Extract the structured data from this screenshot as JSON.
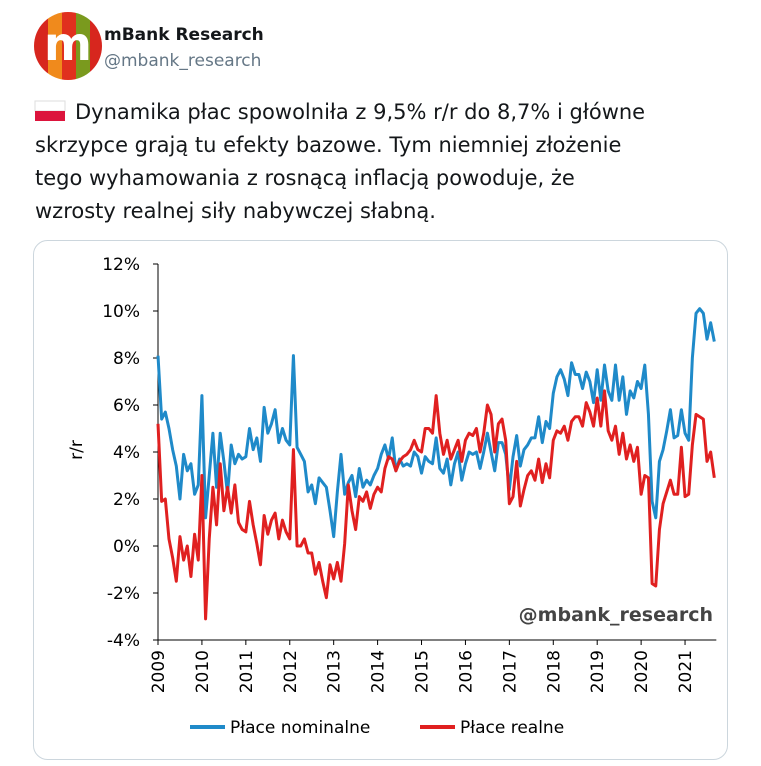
{
  "header": {
    "name": "mBank Research",
    "handle": "@mbank_research"
  },
  "tweet": {
    "text_lines": [
      "Dynamika płac spowolniła z 9,5% r/r do 8,7% i główne",
      "skrzypce grają tu efekty bazowe. Tym niemniej złożenie",
      "tego wyhamowania z rosnącą inflacją powoduje, że",
      "wzrosty realnej siły nabywczej słabną."
    ]
  },
  "chart_data": {
    "type": "line",
    "ylabel": "r/r",
    "annotation": "@mbank_research",
    "categories": [
      "2009",
      null,
      null,
      null,
      null,
      null,
      null,
      null,
      null,
      null,
      null,
      null,
      "2010",
      null,
      null,
      null,
      null,
      null,
      null,
      null,
      null,
      null,
      null,
      null,
      "2011",
      null,
      null,
      null,
      null,
      null,
      null,
      null,
      null,
      null,
      null,
      null,
      "2012",
      null,
      null,
      null,
      null,
      null,
      null,
      null,
      null,
      null,
      null,
      null,
      "2013",
      null,
      null,
      null,
      null,
      null,
      null,
      null,
      null,
      null,
      null,
      null,
      "2014",
      null,
      null,
      null,
      null,
      null,
      null,
      null,
      null,
      null,
      null,
      null,
      "2015",
      null,
      null,
      null,
      null,
      null,
      null,
      null,
      null,
      null,
      null,
      null,
      "2016",
      null,
      null,
      null,
      null,
      null,
      null,
      null,
      null,
      null,
      null,
      null,
      "2017",
      null,
      null,
      null,
      null,
      null,
      null,
      null,
      null,
      null,
      null,
      null,
      "2018",
      null,
      null,
      null,
      null,
      null,
      null,
      null,
      null,
      null,
      null,
      null,
      "2019",
      null,
      null,
      null,
      null,
      null,
      null,
      null,
      null,
      null,
      null,
      null,
      "2020",
      null,
      null,
      null,
      null,
      null,
      null,
      null,
      null,
      null,
      null,
      null,
      "2021",
      null,
      null,
      null,
      null,
      null,
      null,
      null,
      null
    ],
    "series": [
      {
        "name": "Płace nominalne",
        "color": "#1f8ac9",
        "values": [
          8.1,
          5.4,
          5.7,
          5.0,
          4.1,
          3.4,
          2.0,
          3.9,
          3.2,
          3.5,
          2.2,
          2.6,
          6.4,
          1.2,
          3.0,
          4.8,
          2.5,
          4.8,
          3.6,
          2.2,
          4.3,
          3.5,
          3.9,
          3.7,
          3.8,
          5.0,
          4.1,
          4.6,
          3.6,
          5.9,
          4.8,
          5.2,
          5.8,
          4.4,
          5.0,
          4.5,
          4.3,
          8.1,
          4.2,
          3.9,
          3.6,
          2.3,
          2.6,
          1.8,
          2.9,
          2.7,
          2.5,
          1.5,
          0.4,
          2.3,
          3.9,
          2.2,
          2.7,
          3.0,
          2.1,
          3.3,
          2.5,
          2.8,
          2.6,
          3.0,
          3.3,
          3.9,
          4.3,
          3.7,
          4.6,
          3.2,
          3.7,
          3.4,
          3.5,
          3.4,
          4.0,
          3.8,
          3.1,
          3.8,
          3.6,
          3.5,
          4.6,
          3.3,
          3.1,
          3.7,
          2.6,
          3.5,
          4.0,
          2.8,
          3.5,
          4.0,
          3.9,
          4.0,
          3.3,
          4.0,
          4.8,
          4.0,
          3.2,
          4.4,
          4.4,
          3.9,
          2.4,
          3.8,
          4.7,
          3.4,
          4.1,
          4.3,
          4.6,
          4.6,
          5.5,
          4.4,
          5.3,
          5.0,
          6.5,
          7.2,
          7.5,
          7.1,
          6.4,
          7.8,
          7.3,
          7.3,
          6.7,
          7.4,
          7.0,
          6.1,
          7.5,
          6.2,
          7.7,
          6.6,
          6.2,
          7.7,
          6.2,
          7.2,
          5.6,
          6.6,
          6.3,
          7.0,
          6.7,
          7.7,
          5.6,
          1.9,
          1.2,
          3.6,
          4.1,
          4.9,
          5.8,
          4.6,
          4.7,
          5.8,
          4.8,
          4.5,
          8.0,
          9.9,
          10.1,
          9.9,
          8.8,
          9.5,
          8.7
        ]
      },
      {
        "name": "Płace realne",
        "color": "#e02020",
        "values": [
          5.2,
          1.9,
          2.0,
          0.3,
          -0.5,
          -1.5,
          0.4,
          -0.6,
          0.0,
          -1.3,
          0.5,
          -0.6,
          3.0,
          -3.1,
          0.3,
          2.5,
          0.9,
          3.5,
          1.5,
          2.5,
          1.4,
          2.6,
          1.0,
          0.7,
          0.6,
          1.9,
          0.9,
          0.1,
          -0.8,
          1.3,
          0.5,
          1.1,
          1.4,
          0.3,
          1.1,
          0.6,
          0.3,
          4.1,
          0.0,
          0.0,
          0.3,
          -0.3,
          -0.3,
          -1.2,
          -0.7,
          -1.5,
          -2.2,
          -0.8,
          -1.4,
          -0.7,
          -1.5,
          0.1,
          2.6,
          1.5,
          0.7,
          2.1,
          1.9,
          2.3,
          1.6,
          2.2,
          2.5,
          2.3,
          3.3,
          3.8,
          3.7,
          3.2,
          3.6,
          3.8,
          3.9,
          4.1,
          4.5,
          4.1,
          4.0,
          5.0,
          5.0,
          4.8,
          6.4,
          4.8,
          3.9,
          4.5,
          3.7,
          4.1,
          4.5,
          3.6,
          4.5,
          4.8,
          4.7,
          5.0,
          4.0,
          4.8,
          6.0,
          5.6,
          4.0,
          5.2,
          5.4,
          4.5,
          1.8,
          2.1,
          3.6,
          1.7,
          2.4,
          3.0,
          3.2,
          2.8,
          3.7,
          2.7,
          3.5,
          2.9,
          4.5,
          4.9,
          4.8,
          5.1,
          4.5,
          5.3,
          5.5,
          5.5,
          5.1,
          6.1,
          5.7,
          5.1,
          6.3,
          5.1,
          6.6,
          4.9,
          4.5,
          5.1,
          3.9,
          4.8,
          3.7,
          4.3,
          3.6,
          4.2,
          2.2,
          3.0,
          2.9,
          -1.6,
          -1.7,
          0.7,
          1.8,
          2.3,
          2.8,
          2.2,
          2.2,
          4.2,
          2.1,
          2.2,
          4.3,
          5.6,
          5.5,
          5.4,
          3.6,
          4.0,
          2.9
        ]
      }
    ],
    "ylim": [
      -4,
      12
    ],
    "yticks": [
      {
        "value": -4,
        "label": "-4%"
      },
      {
        "value": -2,
        "label": "-2%"
      },
      {
        "value": 0,
        "label": "0%"
      },
      {
        "value": 2,
        "label": "2%"
      },
      {
        "value": 4,
        "label": "4%"
      },
      {
        "value": 6,
        "label": "6%"
      },
      {
        "value": 8,
        "label": "8%"
      },
      {
        "value": 10,
        "label": "10%"
      },
      {
        "value": 12,
        "label": "12%"
      }
    ],
    "legend": "bottom"
  }
}
